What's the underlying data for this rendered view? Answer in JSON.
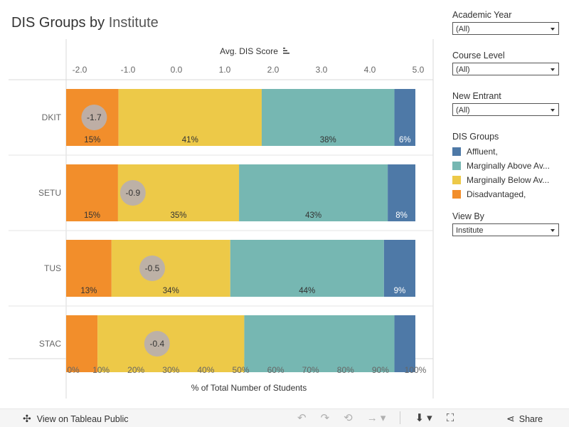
{
  "title": {
    "bold": "DIS Groups by",
    "light": "Institute"
  },
  "chart_data": {
    "type": "bar",
    "orientation": "horizontal-stacked-100",
    "categories": [
      "DKIT",
      "SETU",
      "TUS",
      "STAC"
    ],
    "series": [
      {
        "name": "Disadvantaged,",
        "values": [
          15,
          15,
          13,
          9
        ],
        "labels": [
          "15%",
          "15%",
          "13%",
          ""
        ],
        "color": "#F28E2B"
      },
      {
        "name": "Marginally Below Av...",
        "values": [
          41,
          35,
          34,
          42
        ],
        "labels": [
          "41%",
          "35%",
          "34%",
          ""
        ],
        "color": "#EDC948"
      },
      {
        "name": "Marginally Above Av...",
        "values": [
          38,
          43,
          44,
          43
        ],
        "labels": [
          "38%",
          "43%",
          "44%",
          ""
        ],
        "color": "#76B7B2"
      },
      {
        "name": "Affluent,",
        "values": [
          6,
          8,
          9,
          6
        ],
        "labels": [
          "6%",
          "8%",
          "9%",
          ""
        ],
        "color": "#4E79A7"
      }
    ],
    "dis_score": {
      "values": [
        -1.7,
        -0.9,
        -0.5,
        -0.4
      ],
      "labels": [
        "-1.7",
        "-0.9",
        "-0.5",
        "-0.4"
      ]
    },
    "xlabel_bottom": "% of Total Number of Students",
    "xticks_bottom": [
      "0%",
      "10%",
      "20%",
      "30%",
      "40%",
      "50%",
      "60%",
      "70%",
      "80%",
      "90%",
      "100%"
    ],
    "xlim_bottom": [
      0,
      100
    ],
    "xlabel_top": "Avg. DIS Score",
    "xticks_top": [
      "-2.0",
      "-1.0",
      "0.0",
      "1.0",
      "2.0",
      "3.0",
      "4.0",
      "5.0"
    ],
    "xlim_top": [
      -2.0,
      5.0
    ]
  },
  "filters": {
    "academic_year": {
      "label": "Academic Year",
      "value": "(All)"
    },
    "course_level": {
      "label": "Course Level",
      "value": "(All)"
    },
    "new_entrant": {
      "label": "New Entrant",
      "value": "(All)"
    },
    "view_by": {
      "label": "View By",
      "value": "Institute"
    }
  },
  "legend": {
    "title": "DIS Groups",
    "items": [
      {
        "label": "Affluent,",
        "color": "#4E79A7"
      },
      {
        "label": "Marginally Above Av...",
        "color": "#76B7B2"
      },
      {
        "label": "Marginally Below Av...",
        "color": "#EDC948"
      },
      {
        "label": "Disadvantaged,",
        "color": "#F28E2B"
      }
    ]
  },
  "footer": {
    "view_label": "View on Tableau Public",
    "share_label": "Share"
  }
}
